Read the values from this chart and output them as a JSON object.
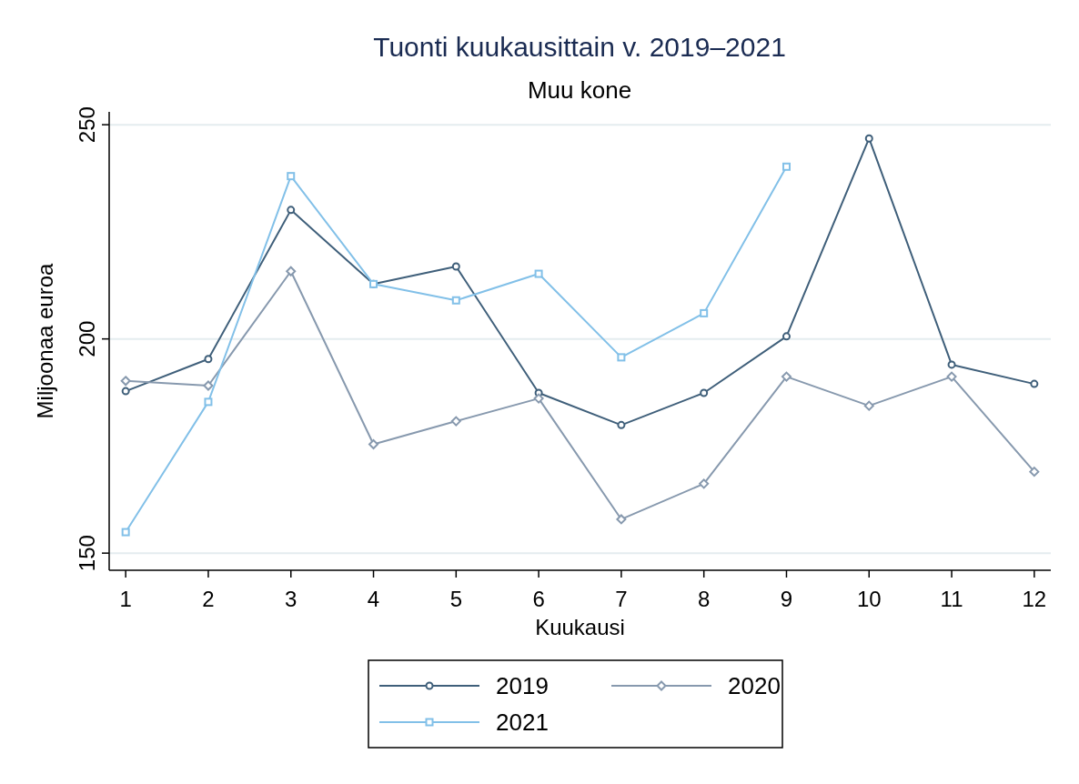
{
  "chart_data": {
    "type": "line",
    "title": "Tuonti kuukausittain v. 2019–2021",
    "subtitle": "Muu kone",
    "xlabel": "Kuukausi",
    "ylabel": "Miljoonaa euroa",
    "x": [
      1,
      2,
      3,
      4,
      5,
      6,
      7,
      8,
      9,
      10,
      11,
      12
    ],
    "xlim": [
      0.8,
      12.2
    ],
    "xticks": [
      1,
      2,
      3,
      4,
      5,
      6,
      7,
      8,
      9,
      10,
      11,
      12
    ],
    "ylim": [
      146,
      253
    ],
    "yticks": [
      150,
      200,
      250
    ],
    "grid": "y",
    "legend": "bottom",
    "series": [
      {
        "name": "2019",
        "color": "#3f5f7a",
        "marker": "circle",
        "values": [
          187.8,
          195.3,
          230.1,
          212.8,
          216.9,
          187.4,
          179.9,
          187.4,
          200.6,
          246.8,
          194.0,
          189.5
        ]
      },
      {
        "name": "2020",
        "color": "#8799ae",
        "marker": "diamond",
        "values": [
          190.2,
          189.1,
          215.8,
          175.4,
          180.8,
          186.1,
          157.9,
          166.2,
          191.2,
          184.4,
          191.2,
          169.0
        ]
      },
      {
        "name": "2021",
        "color": "#82c0e8",
        "marker": "square",
        "x": [
          1,
          2,
          3,
          4,
          5,
          6,
          7,
          8,
          9
        ],
        "values": [
          154.9,
          185.3,
          238.0,
          212.8,
          209.0,
          215.2,
          195.7,
          206.0,
          240.2
        ]
      }
    ]
  }
}
